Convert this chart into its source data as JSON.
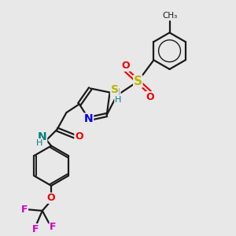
{
  "background_color": "#e8e8e8",
  "bond_color": "#1a1a1a",
  "atom_colors": {
    "S_sulfonyl": "#b8b800",
    "S_thiazole": "#b8b800",
    "N_blue": "#0000ee",
    "N_teal": "#008080",
    "O_red": "#ee0000",
    "F_magenta": "#cc00cc",
    "C": "#1a1a1a"
  },
  "figsize": [
    3.0,
    3.0
  ],
  "dpi": 100,
  "xlim": [
    0,
    10
  ],
  "ylim": [
    0,
    10
  ]
}
